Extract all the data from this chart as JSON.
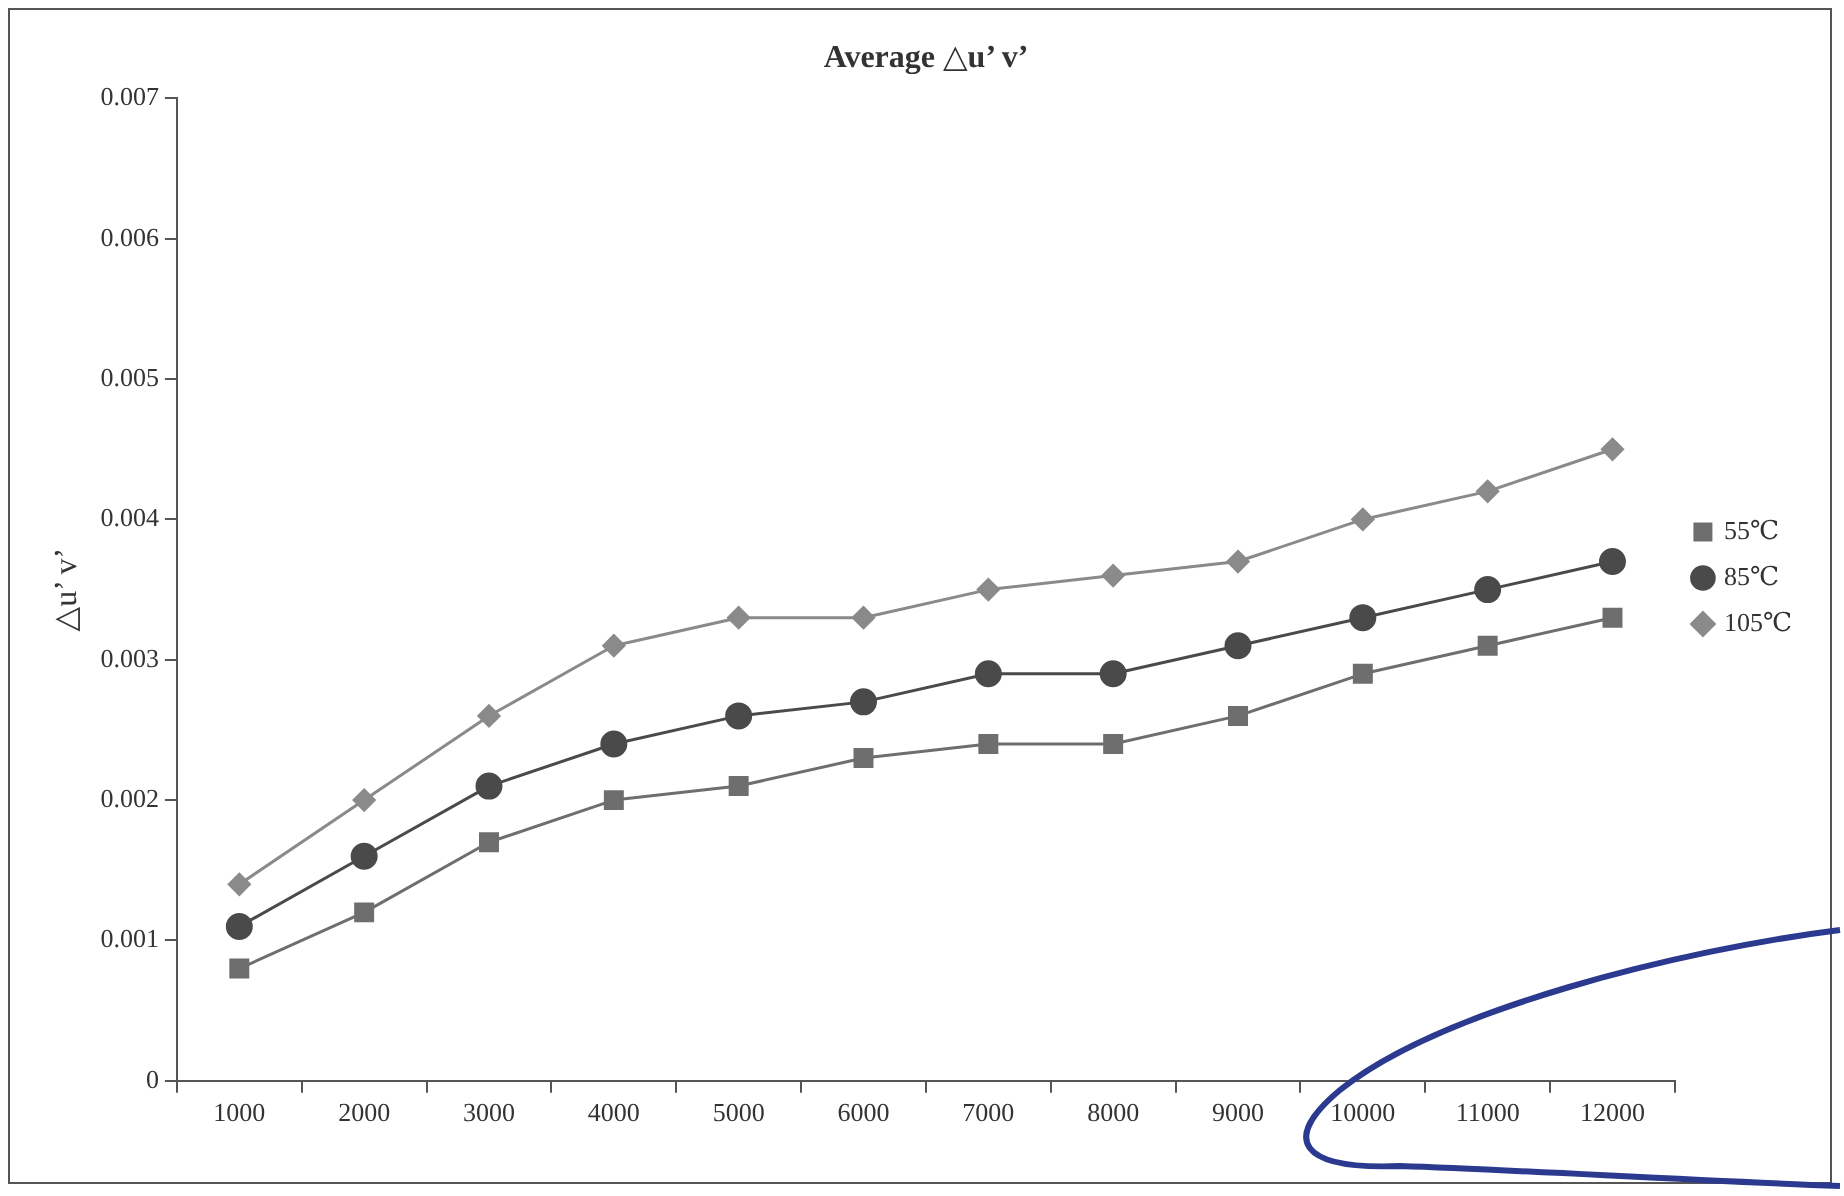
{
  "chart_data": {
    "type": "line",
    "title": "Average △u’ v’",
    "ylabel": "△u’ v’",
    "categories": [
      "1000",
      "2000",
      "3000",
      "4000",
      "5000",
      "6000",
      "7000",
      "8000",
      "9000",
      "10000",
      "11000",
      "12000"
    ],
    "series": [
      {
        "name": "55℃",
        "color": "#6e6e6e",
        "marker": "square",
        "values": [
          0.0008,
          0.0012,
          0.0017,
          0.002,
          0.0021,
          0.0023,
          0.0024,
          0.0024,
          0.0026,
          0.0029,
          0.0031,
          0.0033
        ]
      },
      {
        "name": "85℃",
        "color": "#4a4a4a",
        "marker": "circle",
        "values": [
          0.0011,
          0.0016,
          0.0021,
          0.0024,
          0.0026,
          0.0027,
          0.0029,
          0.0029,
          0.0031,
          0.0033,
          0.0035,
          0.0037
        ]
      },
      {
        "name": "105℃",
        "color": "#8a8a8a",
        "marker": "diamond",
        "values": [
          0.0014,
          0.002,
          0.0026,
          0.0031,
          0.0033,
          0.0033,
          0.0035,
          0.0036,
          0.0037,
          0.004,
          0.0042,
          0.0045
        ]
      }
    ],
    "ylim": [
      0,
      0.007
    ],
    "yticks": [
      0,
      0.001,
      0.002,
      0.003,
      0.004,
      0.005,
      0.006,
      0.007
    ],
    "grid": false,
    "legend": "right",
    "line_style": "solid"
  }
}
